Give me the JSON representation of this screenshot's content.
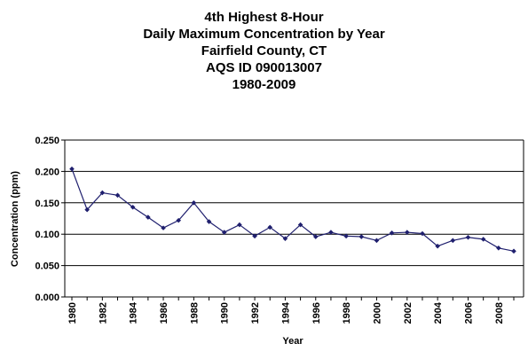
{
  "chart_data": {
    "type": "line",
    "title_lines": [
      "4th Highest 8-Hour",
      "Daily Maximum Concentration by Year",
      "Fairfield County, CT",
      "AQS ID 090013007",
      "1980-2009"
    ],
    "xlabel": "Year",
    "ylabel": "Concentration (ppm)",
    "ylim": [
      0,
      0.25
    ],
    "yticks": [
      "0.000",
      "0.050",
      "0.100",
      "0.150",
      "0.200",
      "0.250"
    ],
    "xlim": [
      1980,
      2009
    ],
    "xticks": [
      "1980",
      "1982",
      "1984",
      "1986",
      "1988",
      "1990",
      "1992",
      "1994",
      "1996",
      "1998",
      "2000",
      "2002",
      "2004",
      "2006",
      "2008"
    ],
    "grid": true,
    "x": [
      1980,
      1981,
      1982,
      1983,
      1984,
      1985,
      1986,
      1987,
      1988,
      1989,
      1990,
      1991,
      1992,
      1993,
      1994,
      1995,
      1996,
      1997,
      1998,
      1999,
      2000,
      2001,
      2002,
      2003,
      2004,
      2005,
      2006,
      2007,
      2008,
      2009
    ],
    "values": [
      0.204,
      0.139,
      0.166,
      0.162,
      0.143,
      0.127,
      0.11,
      0.122,
      0.15,
      0.12,
      0.103,
      0.115,
      0.097,
      0.111,
      0.093,
      0.115,
      0.096,
      0.103,
      0.097,
      0.096,
      0.09,
      0.102,
      0.103,
      0.101,
      0.081,
      0.09,
      0.095,
      0.092,
      0.078,
      0.073
    ],
    "line_color": "#1f1f6e"
  }
}
